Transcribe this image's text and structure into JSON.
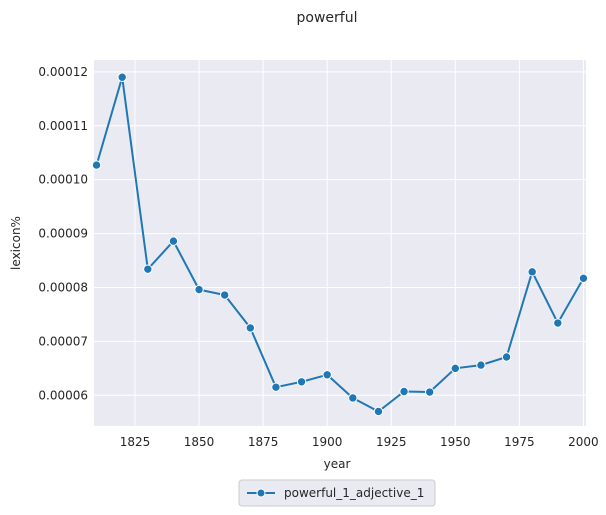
{
  "chart_data": {
    "type": "line",
    "title": "powerful",
    "xlabel": "year",
    "ylabel": "lexicon%",
    "xlim": [
      1809,
      2001
    ],
    "ylim": [
      5.43e-05,
      0.0001222
    ],
    "x_ticks": [
      1825,
      1850,
      1875,
      1900,
      1925,
      1950,
      1975,
      2000
    ],
    "x_tick_labels": [
      "1825",
      "1850",
      "1875",
      "1900",
      "1925",
      "1950",
      "1975",
      "2000"
    ],
    "y_ticks": [
      6e-05,
      7e-05,
      8e-05,
      9e-05,
      0.0001,
      0.00011,
      0.00012
    ],
    "y_tick_labels": [
      "0.00006",
      "0.00007",
      "0.00008",
      "0.00009",
      "0.00010",
      "0.00011",
      "0.00012"
    ],
    "grid": true,
    "legend_position": "bottom-center",
    "series": [
      {
        "name": "powerful_1_adjective_1",
        "color": "#1f77b4",
        "x": [
          1810,
          1820,
          1830,
          1840,
          1850,
          1860,
          1870,
          1880,
          1890,
          1900,
          1910,
          1920,
          1930,
          1940,
          1950,
          1960,
          1970,
          1980,
          1990,
          2000
        ],
        "values": [
          0.0001027,
          0.000119,
          8.34e-05,
          8.86e-05,
          7.96e-05,
          7.86e-05,
          7.25e-05,
          6.15e-05,
          6.25e-05,
          6.38e-05,
          5.95e-05,
          5.7e-05,
          6.07e-05,
          6.06e-05,
          6.5e-05,
          6.56e-05,
          6.71e-05,
          8.29e-05,
          7.34e-05,
          8.17e-05
        ]
      }
    ]
  }
}
